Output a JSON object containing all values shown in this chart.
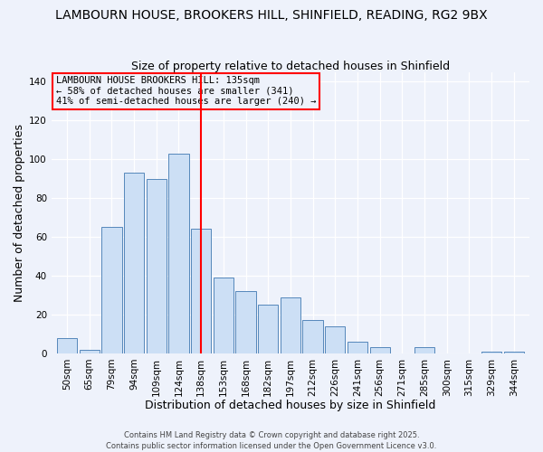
{
  "title": "LAMBOURN HOUSE, BROOKERS HILL, SHINFIELD, READING, RG2 9BX",
  "subtitle": "Size of property relative to detached houses in Shinfield",
  "xlabel": "Distribution of detached houses by size in Shinfield",
  "ylabel": "Number of detached properties",
  "bar_labels": [
    "50sqm",
    "65sqm",
    "79sqm",
    "94sqm",
    "109sqm",
    "124sqm",
    "138sqm",
    "153sqm",
    "168sqm",
    "182sqm",
    "197sqm",
    "212sqm",
    "226sqm",
    "241sqm",
    "256sqm",
    "271sqm",
    "285sqm",
    "300sqm",
    "315sqm",
    "329sqm",
    "344sqm"
  ],
  "bar_values": [
    8,
    2,
    65,
    93,
    90,
    103,
    64,
    39,
    32,
    25,
    29,
    17,
    14,
    6,
    3,
    0,
    3,
    0,
    0,
    1,
    1
  ],
  "bar_color": "#ccdff5",
  "bar_edge_color": "#5588bb",
  "vline_label": "138sqm",
  "vline_color": "red",
  "ylim": [
    0,
    145
  ],
  "yticks": [
    0,
    20,
    40,
    60,
    80,
    100,
    120,
    140
  ],
  "annotation_title": "LAMBOURN HOUSE BROOKERS HILL: 135sqm",
  "annotation_line1": "← 58% of detached houses are smaller (341)",
  "annotation_line2": "41% of semi-detached houses are larger (240) →",
  "annotation_box_edge": "red",
  "footer1": "Contains HM Land Registry data © Crown copyright and database right 2025.",
  "footer2": "Contains public sector information licensed under the Open Government Licence v3.0.",
  "background_color": "#eef2fb",
  "title_fontsize": 10,
  "subtitle_fontsize": 9,
  "axis_label_fontsize": 9,
  "tick_fontsize": 7.5,
  "annotation_fontsize": 7.5,
  "footer_fontsize": 6
}
